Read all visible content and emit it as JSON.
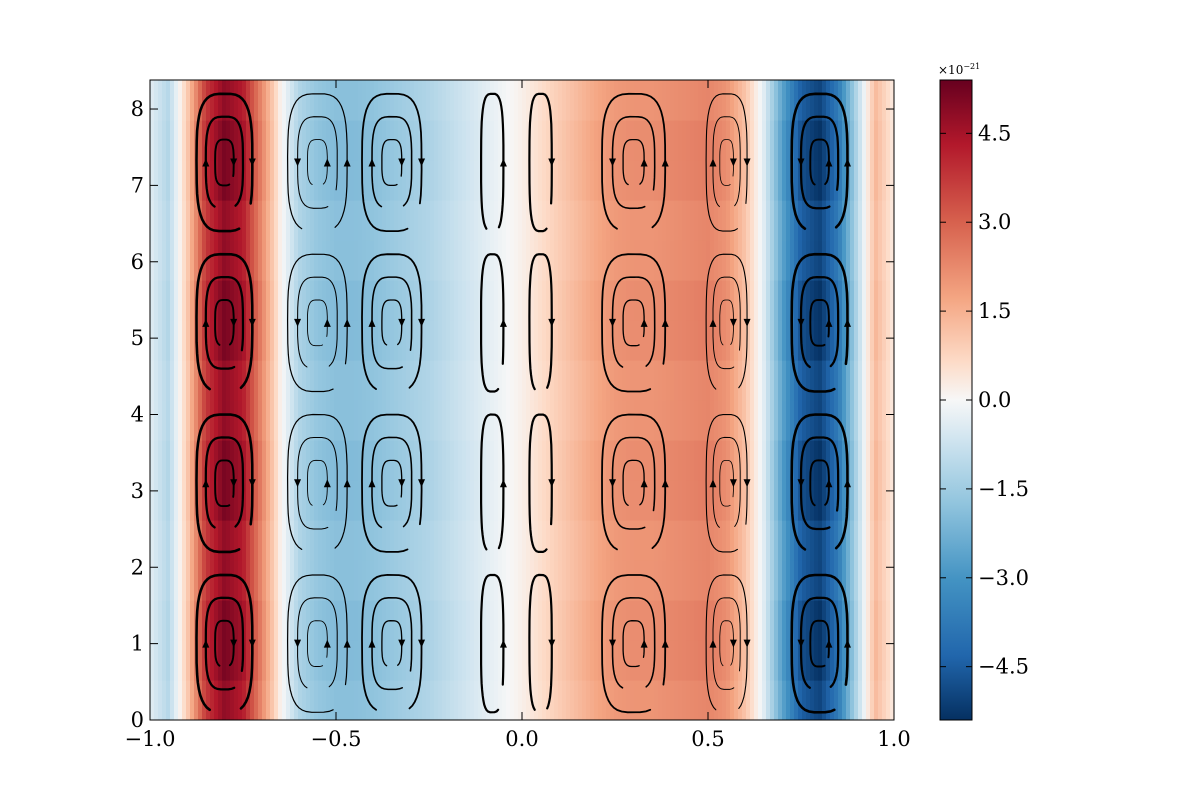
{
  "chart_data": {
    "type": "heatmap",
    "title": "",
    "xlabel": "",
    "ylabel": "",
    "xlim": [
      -1.0,
      1.0
    ],
    "ylim": [
      0,
      8.38
    ],
    "x_ticks": [
      -1.0,
      -0.5,
      0.0,
      0.5,
      1.0
    ],
    "x_tick_labels": [
      "−1.0",
      "−0.5",
      "0.0",
      "0.5",
      "1.0"
    ],
    "y_ticks": [
      0,
      1,
      2,
      3,
      4,
      5,
      6,
      7,
      8
    ],
    "y_tick_labels": [
      "0",
      "1",
      "2",
      "3",
      "4",
      "5",
      "6",
      "7",
      "8"
    ],
    "colormap": "RdBu_r",
    "colorbar": {
      "range": [
        -5.4,
        5.4
      ],
      "ticks": [
        -4.5,
        -3.0,
        -1.5,
        0.0,
        1.5,
        3.0,
        4.5
      ],
      "tick_labels": [
        "−4.5",
        "−3.0",
        "−1.5",
        "0.0",
        "1.5",
        "3.0",
        "4.5"
      ],
      "exponent_label": "×10",
      "exponent_power": "−21"
    },
    "field_profile_x": [
      -1.0,
      -0.95,
      -0.9,
      -0.85,
      -0.8,
      -0.75,
      -0.7,
      -0.65,
      -0.6,
      -0.55,
      -0.5,
      -0.45,
      -0.4,
      -0.35,
      -0.3,
      -0.25,
      -0.2,
      -0.15,
      -0.1,
      -0.05,
      0.0,
      0.05,
      0.1,
      0.15,
      0.2,
      0.25,
      0.3,
      0.35,
      0.4,
      0.45,
      0.5,
      0.55,
      0.6,
      0.65,
      0.7,
      0.75,
      0.8,
      0.85,
      0.9,
      0.95,
      1.0
    ],
    "field_profile_values": [
      -0.4,
      -1.2,
      1.0,
      4.0,
      5.2,
      4.6,
      2.4,
      0.2,
      -1.3,
      -1.8,
      -2.0,
      -2.0,
      -1.9,
      -1.7,
      -1.5,
      -1.3,
      -1.0,
      -0.7,
      -0.4,
      -0.1,
      0.2,
      0.6,
      1.0,
      1.4,
      1.8,
      2.1,
      2.2,
      2.2,
      2.3,
      2.4,
      2.5,
      2.2,
      1.2,
      -0.4,
      -2.8,
      -4.8,
      -5.4,
      -4.0,
      -1.2,
      1.4,
      0.3
    ],
    "streamplot": {
      "description_cells_x": [
        -0.8,
        -0.55,
        -0.35,
        -0.08,
        0.05,
        0.3,
        0.55,
        0.8
      ],
      "vortex_rows_y": [
        1.0,
        3.1,
        5.2,
        7.3
      ]
    }
  }
}
